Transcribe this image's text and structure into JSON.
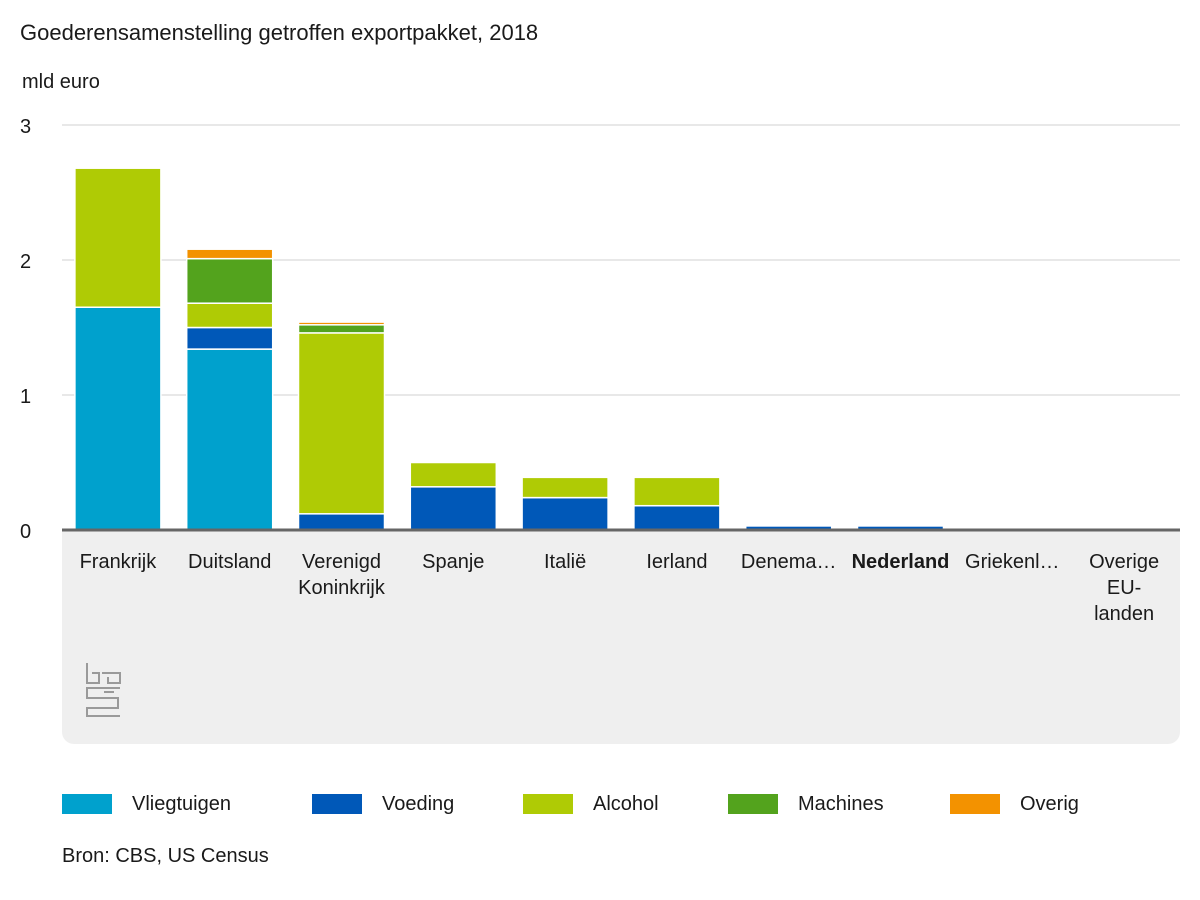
{
  "header": {
    "title": "Goederensamenstelling getroffen exportpakket, 2018",
    "unit": "mld euro"
  },
  "footer": {
    "source": "Bron: CBS, US Census"
  },
  "logo": {
    "label": "cbs"
  },
  "colors": {
    "Vliegtuigen": "#00a1cd",
    "Voeding": "#0058b8",
    "Alcohol": "#afcb05",
    "Machines": "#53a31d",
    "Overig": "#f39200",
    "grid": "#d0d0d0",
    "axis": "#666666"
  },
  "chart_data": {
    "type": "bar",
    "stacked": true,
    "title": "Goederensamenstelling getroffen exportpakket, 2018",
    "ylabel": "mld euro",
    "xlabel": "",
    "ylim": [
      0,
      3
    ],
    "yticks": [
      0,
      1,
      2,
      3
    ],
    "grid": true,
    "legend_position": "bottom",
    "categories": [
      "Frankrijk",
      "Duitsland",
      "Verenigd Koninkrijk",
      "Spanje",
      "Italië",
      "Ierland",
      "Denemarken",
      "Nederland",
      "Griekenland",
      "Overige EU-landen"
    ],
    "category_labels": [
      [
        "Frankrijk"
      ],
      [
        "Duitsland"
      ],
      [
        "Verenigd",
        "Koninkrijk"
      ],
      [
        "Spanje"
      ],
      [
        "Italië"
      ],
      [
        "Ierland"
      ],
      [
        "Denema…"
      ],
      [
        "Nederland"
      ],
      [
        "Griekenl…"
      ],
      [
        "Overige",
        "EU-",
        "landen"
      ]
    ],
    "highlight_category": "Nederland",
    "series": [
      {
        "name": "Vliegtuigen",
        "values": [
          1.65,
          1.34,
          0,
          0,
          0,
          0,
          0,
          0,
          0,
          0
        ]
      },
      {
        "name": "Voeding",
        "values": [
          0,
          0.16,
          0.12,
          0.32,
          0.24,
          0.18,
          0.03,
          0.03,
          0,
          0
        ]
      },
      {
        "name": "Alcohol",
        "values": [
          1.03,
          0.18,
          1.34,
          0.18,
          0.15,
          0.21,
          0,
          0,
          0,
          0
        ]
      },
      {
        "name": "Machines",
        "values": [
          0,
          0.33,
          0.06,
          0,
          0,
          0,
          0,
          0,
          0,
          0
        ]
      },
      {
        "name": "Overig",
        "values": [
          0,
          0.07,
          0.02,
          0,
          0,
          0,
          0,
          0,
          0,
          0
        ]
      }
    ]
  }
}
